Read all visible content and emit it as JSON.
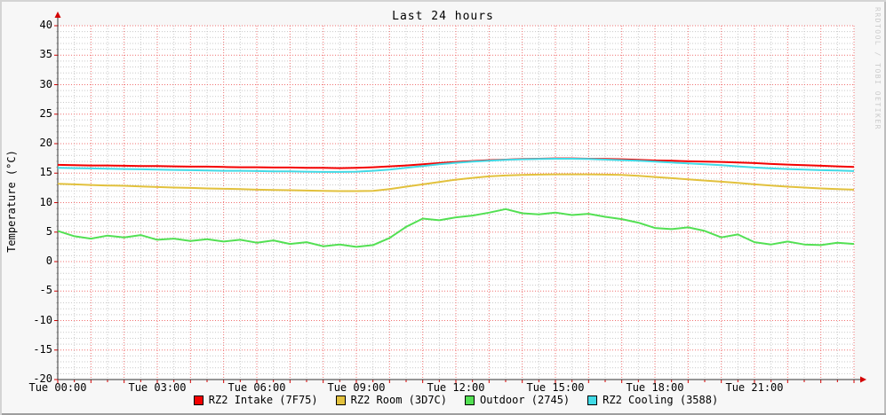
{
  "watermark": "RRDTOOL / TOBI OETIKER",
  "colors": {
    "background": "#f7f7f7",
    "canvas": "#ffffff",
    "grid_minor": "#c9c9c9",
    "grid_major": "#f07070",
    "axis": "#333333",
    "arrow": "#d40000",
    "tick": "#d40000",
    "text": "#000000",
    "watermark": "#cccccc"
  },
  "chart_data": {
    "type": "line",
    "title": "Last 24 hours",
    "xlabel": "",
    "ylabel": "Temperature (°C)",
    "ylim": [
      -20,
      40
    ],
    "xlim_hours": [
      0,
      24
    ],
    "y_major_step": 5,
    "y_minor_step": 1,
    "x_major_step_hours": 1,
    "x_minor_step_hours": 0.5,
    "grid": true,
    "legend_position": "bottom",
    "yticks": [
      40,
      35,
      30,
      25,
      20,
      15,
      10,
      5,
      0,
      -5,
      -10,
      -15,
      -20
    ],
    "xticks": [
      {
        "hour": 0,
        "label": "Tue 00:00"
      },
      {
        "hour": 3,
        "label": "Tue 03:00"
      },
      {
        "hour": 6,
        "label": "Tue 06:00"
      },
      {
        "hour": 9,
        "label": "Tue 09:00"
      },
      {
        "hour": 12,
        "label": "Tue 12:00"
      },
      {
        "hour": 15,
        "label": "Tue 15:00"
      },
      {
        "hour": 18,
        "label": "Tue 18:00"
      },
      {
        "hour": 21,
        "label": "Tue 21:00"
      }
    ],
    "x_hours": [
      0,
      0.5,
      1,
      1.5,
      2,
      2.5,
      3,
      3.5,
      4,
      4.5,
      5,
      5.5,
      6,
      6.5,
      7,
      7.5,
      8,
      8.5,
      9,
      9.5,
      10,
      10.5,
      11,
      11.5,
      12,
      12.5,
      13,
      13.5,
      14,
      14.5,
      15,
      15.5,
      16,
      16.5,
      17,
      17.5,
      18,
      18.5,
      19,
      19.5,
      20,
      20.5,
      21,
      21.5,
      22,
      22.5,
      23,
      23.5,
      24
    ],
    "series": [
      {
        "name": "RZ2 Intake (7F75)",
        "color": "#f40000",
        "values": [
          16.4,
          16.35,
          16.3,
          16.3,
          16.25,
          16.2,
          16.2,
          16.15,
          16.1,
          16.1,
          16.05,
          16.0,
          16.0,
          15.95,
          15.95,
          15.9,
          15.9,
          15.85,
          15.9,
          16.0,
          16.15,
          16.3,
          16.5,
          16.7,
          16.9,
          17.05,
          17.2,
          17.3,
          17.4,
          17.45,
          17.5,
          17.5,
          17.45,
          17.4,
          17.35,
          17.25,
          17.15,
          17.1,
          17.0,
          16.95,
          16.9,
          16.8,
          16.7,
          16.55,
          16.45,
          16.35,
          16.25,
          16.15,
          16.05
        ]
      },
      {
        "name": "RZ2 Room (3D7C)",
        "color": "#e2c13d",
        "values": [
          13.2,
          13.1,
          13.0,
          12.9,
          12.85,
          12.75,
          12.65,
          12.55,
          12.5,
          12.4,
          12.35,
          12.3,
          12.2,
          12.15,
          12.1,
          12.05,
          12.0,
          11.95,
          11.95,
          12.0,
          12.3,
          12.7,
          13.1,
          13.5,
          13.9,
          14.2,
          14.45,
          14.6,
          14.7,
          14.75,
          14.8,
          14.8,
          14.8,
          14.75,
          14.7,
          14.55,
          14.35,
          14.15,
          13.95,
          13.75,
          13.55,
          13.35,
          13.1,
          12.9,
          12.7,
          12.55,
          12.4,
          12.3,
          12.2
        ]
      },
      {
        "name": "Outdoor (2745)",
        "color": "#53e053",
        "values": [
          5.2,
          4.3,
          3.9,
          4.4,
          4.1,
          4.5,
          3.7,
          3.9,
          3.5,
          3.8,
          3.4,
          3.7,
          3.2,
          3.6,
          3.0,
          3.3,
          2.6,
          2.9,
          2.5,
          2.8,
          4.0,
          5.9,
          7.3,
          7.0,
          7.5,
          7.8,
          8.3,
          8.9,
          8.2,
          8.0,
          8.3,
          7.9,
          8.1,
          7.6,
          7.2,
          6.6,
          5.7,
          5.5,
          5.8,
          5.2,
          4.1,
          4.6,
          3.3,
          2.9,
          3.4,
          2.9,
          2.8,
          3.2,
          3.0
        ]
      },
      {
        "name": "RZ2 Cooling (3588)",
        "color": "#41dae6",
        "values": [
          15.9,
          15.85,
          15.8,
          15.75,
          15.7,
          15.65,
          15.6,
          15.55,
          15.5,
          15.45,
          15.4,
          15.4,
          15.35,
          15.3,
          15.3,
          15.25,
          15.2,
          15.2,
          15.25,
          15.4,
          15.6,
          15.9,
          16.2,
          16.5,
          16.75,
          16.95,
          17.1,
          17.25,
          17.35,
          17.4,
          17.45,
          17.45,
          17.4,
          17.3,
          17.2,
          17.1,
          16.95,
          16.8,
          16.65,
          16.5,
          16.35,
          16.15,
          15.95,
          15.8,
          15.7,
          15.6,
          15.5,
          15.45,
          15.35
        ]
      }
    ]
  }
}
